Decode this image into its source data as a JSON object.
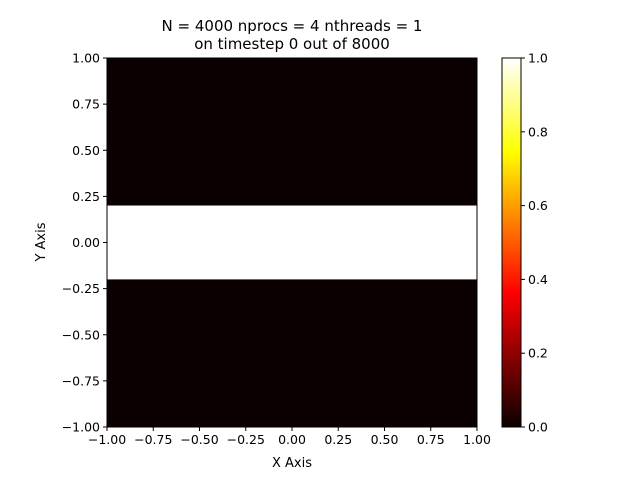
{
  "chart_data": {
    "type": "heatmap",
    "title_line1": "N = 4000 nprocs = 4 nthreads = 1",
    "title_line2": "on timestep 0 out of 8000",
    "xlabel": "X Axis",
    "ylabel": "Y Axis",
    "xlim": [
      -1.0,
      1.0
    ],
    "ylim": [
      -1.0,
      1.0
    ],
    "x_ticks": [
      -1.0,
      -0.75,
      -0.5,
      -0.25,
      0.0,
      0.25,
      0.5,
      0.75,
      1.0
    ],
    "x_tick_labels": [
      "−1.00",
      "−0.75",
      "−0.50",
      "−0.25",
      "0.00",
      "0.25",
      "0.50",
      "0.75",
      "1.00"
    ],
    "y_ticks": [
      -1.0,
      -0.75,
      -0.5,
      -0.25,
      0.0,
      0.25,
      0.5,
      0.75,
      1.0
    ],
    "y_tick_labels": [
      "−1.00",
      "−0.75",
      "−0.50",
      "−0.25",
      "0.00",
      "0.25",
      "0.50",
      "0.75",
      "1.00"
    ],
    "colormap": "hot",
    "colorbar": {
      "range": [
        0.0,
        1.0
      ],
      "ticks": [
        0.0,
        0.2,
        0.4,
        0.6,
        0.8,
        1.0
      ],
      "tick_labels": [
        "0.0",
        "0.2",
        "0.4",
        "0.6",
        "0.8",
        "1.0"
      ]
    },
    "regions": [
      {
        "y_range": [
          0.2,
          1.0
        ],
        "value": 0.0
      },
      {
        "y_range": [
          -0.2,
          0.2
        ],
        "value": 1.0
      },
      {
        "y_range": [
          -1.0,
          -0.2
        ],
        "value": 0.0
      }
    ],
    "grid": false
  },
  "colors": {
    "low": "#0b0000",
    "high": "#ffffff"
  }
}
